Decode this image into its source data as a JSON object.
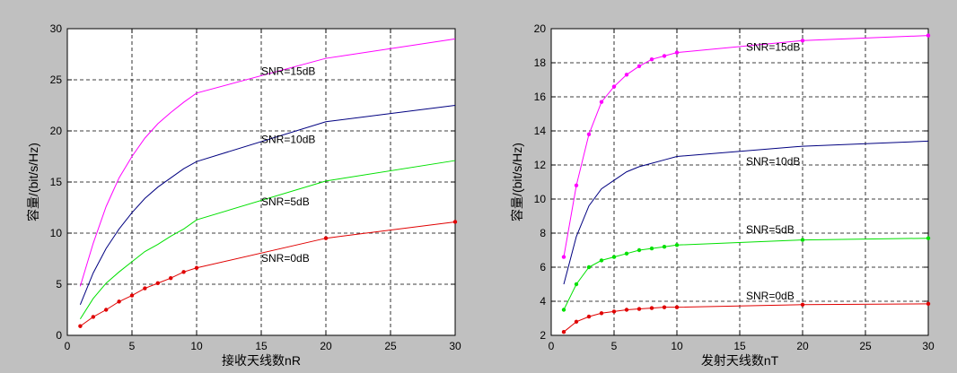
{
  "figure": {
    "background": "#c0c0c0"
  },
  "chart_data": [
    {
      "type": "line",
      "title": "",
      "xlabel": "接收天线数nR",
      "ylabel": "容量/(bit/s/Hz)",
      "xlim": [
        0,
        30
      ],
      "ylim": [
        0,
        30
      ],
      "xticks": [
        0,
        5,
        10,
        15,
        20,
        25,
        30
      ],
      "yticks": [
        0,
        5,
        10,
        15,
        20,
        25,
        30
      ],
      "grid": true,
      "series": [
        {
          "name": "SNR=15dB",
          "color": "#ff00ff",
          "markers": false,
          "x": [
            1,
            2,
            3,
            4,
            5,
            6,
            7,
            8,
            9,
            10,
            20,
            30
          ],
          "y": [
            4.8,
            9.0,
            12.6,
            15.4,
            17.5,
            19.3,
            20.7,
            21.8,
            22.8,
            23.7,
            27.1,
            29.0
          ],
          "label_text": "SNR=15dB",
          "label_at": [
            15,
            25.5
          ]
        },
        {
          "name": "SNR=10dB",
          "color": "#000080",
          "markers": false,
          "x": [
            1,
            2,
            3,
            4,
            5,
            6,
            7,
            8,
            9,
            10,
            20,
            30
          ],
          "y": [
            3.0,
            6.1,
            8.5,
            10.4,
            12.0,
            13.4,
            14.5,
            15.4,
            16.3,
            17.0,
            20.9,
            22.5
          ],
          "label_text": "SNR=10dB",
          "label_at": [
            15,
            18.8
          ]
        },
        {
          "name": "SNR=5dB",
          "color": "#00e000",
          "markers": false,
          "x": [
            1,
            2,
            3,
            4,
            5,
            6,
            7,
            8,
            9,
            10,
            20,
            30
          ],
          "y": [
            1.6,
            3.6,
            5.1,
            6.2,
            7.2,
            8.2,
            8.9,
            9.7,
            10.4,
            11.3,
            15.1,
            17.1
          ],
          "label_text": "SNR=5dB",
          "label_at": [
            15,
            12.7
          ]
        },
        {
          "name": "SNR=0dB",
          "color": "#e00000",
          "markers": true,
          "x": [
            1,
            2,
            3,
            4,
            5,
            6,
            7,
            8,
            9,
            10,
            20,
            30
          ],
          "y": [
            0.9,
            1.8,
            2.5,
            3.3,
            3.9,
            4.6,
            5.1,
            5.6,
            6.2,
            6.6,
            9.5,
            11.1
          ],
          "label_text": "SNR=0dB",
          "label_at": [
            15,
            7.2
          ]
        }
      ]
    },
    {
      "type": "line",
      "title": "",
      "xlabel": "发射天线数nT",
      "ylabel": "容量/(bit/s/Hz)",
      "xlim": [
        0,
        30
      ],
      "ylim": [
        2,
        20
      ],
      "xticks": [
        0,
        5,
        10,
        15,
        20,
        25,
        30
      ],
      "yticks": [
        2,
        4,
        6,
        8,
        10,
        12,
        14,
        16,
        18,
        20
      ],
      "grid": true,
      "series": [
        {
          "name": "SNR=15dB",
          "color": "#ff00ff",
          "markers": true,
          "x": [
            1,
            2,
            3,
            4,
            5,
            6,
            7,
            8,
            9,
            10,
            20,
            30
          ],
          "y": [
            6.6,
            10.8,
            13.8,
            15.7,
            16.6,
            17.3,
            17.8,
            18.2,
            18.4,
            18.6,
            19.3,
            19.6
          ],
          "label_text": "SNR=15dB",
          "label_at": [
            15.5,
            18.7
          ]
        },
        {
          "name": "SNR=10dB",
          "color": "#000080",
          "markers": false,
          "x": [
            1,
            2,
            3,
            4,
            5,
            6,
            7,
            8,
            9,
            10,
            20,
            30
          ],
          "y": [
            5.0,
            7.8,
            9.6,
            10.6,
            11.1,
            11.6,
            11.9,
            12.1,
            12.3,
            12.5,
            13.1,
            13.4
          ],
          "label_text": "SNR=10dB",
          "label_at": [
            15.5,
            12.0
          ]
        },
        {
          "name": "SNR=5dB",
          "color": "#00e000",
          "markers": true,
          "x": [
            1,
            2,
            3,
            4,
            5,
            6,
            7,
            8,
            9,
            10,
            20,
            30
          ],
          "y": [
            3.5,
            5.0,
            6.0,
            6.4,
            6.6,
            6.8,
            7.0,
            7.1,
            7.2,
            7.3,
            7.6,
            7.7
          ],
          "label_text": "SNR=5dB",
          "label_at": [
            15.5,
            8.0
          ]
        },
        {
          "name": "SNR=0dB",
          "color": "#e00000",
          "markers": true,
          "x": [
            1,
            2,
            3,
            4,
            5,
            6,
            7,
            8,
            9,
            10,
            20,
            30
          ],
          "y": [
            2.2,
            2.8,
            3.1,
            3.3,
            3.4,
            3.5,
            3.55,
            3.6,
            3.65,
            3.65,
            3.8,
            3.85
          ],
          "label_text": "SNR=0dB",
          "label_at": [
            15.5,
            4.1
          ]
        }
      ]
    }
  ]
}
